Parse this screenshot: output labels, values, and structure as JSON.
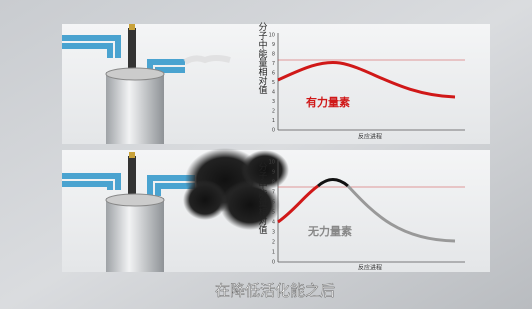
{
  "panels": [
    {
      "y_label": "分子中能量相对值",
      "yticks": [
        0,
        1,
        2,
        3,
        4,
        5,
        6,
        7,
        8,
        9,
        10
      ],
      "curve_label": "有力量素",
      "x_label": "反应进程"
    },
    {
      "y_label": "分子中能量相对值",
      "yticks": [
        0,
        1,
        2,
        3,
        4,
        5,
        6,
        7,
        8,
        9,
        10
      ],
      "curve_label": "无力量素",
      "x_label": "反应进程"
    }
  ],
  "caption": "在降低活化能之后"
}
